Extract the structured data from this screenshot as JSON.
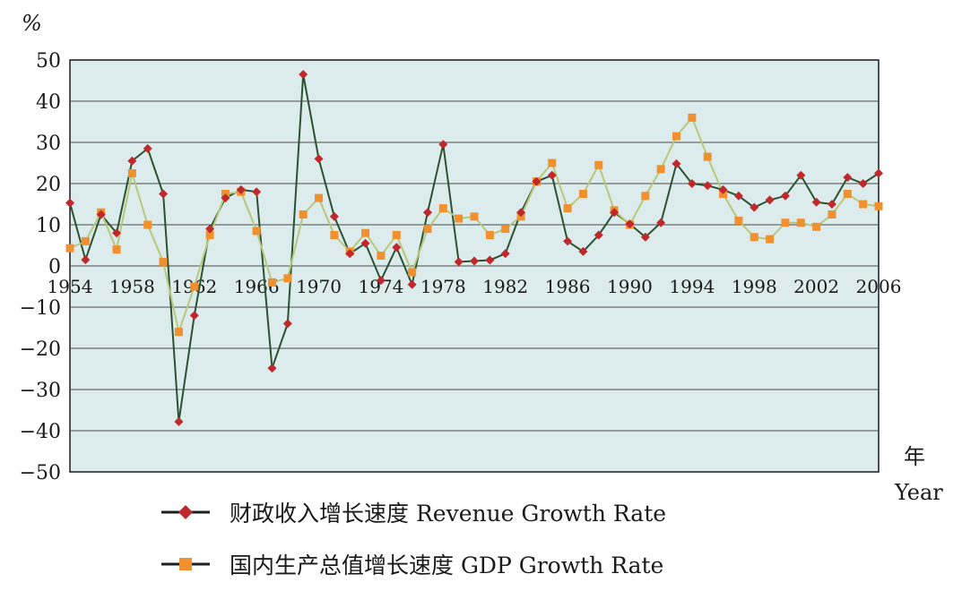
{
  "chart_data": {
    "type": "line",
    "title": "",
    "ylabel": "%",
    "xlabel": "年 Year",
    "xlabel_cn": "年",
    "xlabel_en": "Year",
    "ylim": [
      -50,
      50
    ],
    "xlim": [
      1954,
      2006
    ],
    "yticks": [
      50,
      40,
      30,
      20,
      10,
      0,
      -10,
      -20,
      -30,
      -40,
      -50
    ],
    "xticks": [
      1954,
      1958,
      1962,
      1966,
      1970,
      1974,
      1978,
      1982,
      1986,
      1990,
      1994,
      1998,
      2002,
      2006
    ],
    "grid": true,
    "legend_position": "bottom",
    "x": [
      1954,
      1955,
      1956,
      1957,
      1958,
      1959,
      1960,
      1961,
      1962,
      1963,
      1964,
      1965,
      1966,
      1967,
      1968,
      1969,
      1970,
      1971,
      1972,
      1973,
      1974,
      1975,
      1976,
      1977,
      1978,
      1979,
      1980,
      1981,
      1982,
      1983,
      1984,
      1985,
      1986,
      1987,
      1988,
      1989,
      1990,
      1991,
      1992,
      1993,
      1994,
      1995,
      1996,
      1997,
      1998,
      1999,
      2000,
      2001,
      2002,
      2003,
      2004,
      2005,
      2006
    ],
    "series": [
      {
        "name": "财政收入增长速度 Revenue Growth Rate",
        "color": "#c0282c",
        "line_color": "#2a5230",
        "marker": "diamond",
        "values": [
          15.3,
          1.5,
          12.5,
          8.0,
          25.5,
          28.5,
          17.5,
          -37.8,
          -12.0,
          9.0,
          16.5,
          18.5,
          18.0,
          -24.8,
          -14.0,
          46.5,
          26.0,
          12.0,
          3.0,
          5.5,
          -3.5,
          4.5,
          -4.5,
          13.0,
          29.5,
          1.0,
          1.2,
          1.4,
          3.0,
          13.0,
          20.5,
          22.0,
          6.0,
          3.5,
          7.5,
          13.0,
          10.2,
          7.0,
          10.5,
          24.8,
          20.0,
          19.5,
          18.5,
          17.0,
          14.2,
          16.0,
          17.0,
          22.0,
          15.5,
          15.0,
          21.5,
          20.0,
          22.5
        ]
      },
      {
        "name": "国内生产总值增长速度 GDP Growth Rate",
        "color": "#f0902e",
        "line_color": "#b8c87a",
        "marker": "square",
        "values": [
          4.3,
          6.0,
          13.0,
          4.0,
          22.5,
          10.0,
          1.0,
          -16.0,
          -5.0,
          7.5,
          17.5,
          18.0,
          8.5,
          -4.0,
          -3.0,
          12.5,
          16.5,
          7.5,
          3.5,
          8.0,
          2.5,
          7.5,
          -1.5,
          9.0,
          14.0,
          11.5,
          12.0,
          7.5,
          9.0,
          12.0,
          20.5,
          25.0,
          14.0,
          17.5,
          24.5,
          13.5,
          10.0,
          17.0,
          23.5,
          31.5,
          36.0,
          26.5,
          17.5,
          11.0,
          7.0,
          6.5,
          10.5,
          10.5,
          9.5,
          12.5,
          17.5,
          15.0,
          14.5
        ]
      }
    ]
  }
}
